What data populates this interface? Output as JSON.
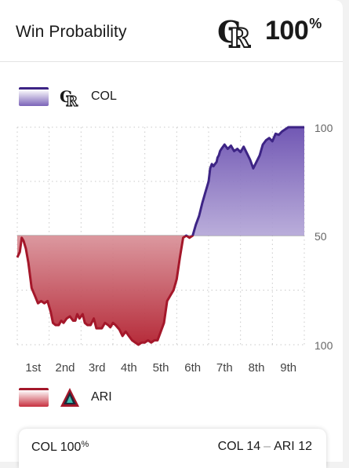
{
  "header": {
    "title": "Win Probability",
    "leader_logo": "col-rockies-logo",
    "percent_value": "100",
    "percent_sign": "%"
  },
  "legend": {
    "top": {
      "label": "COL",
      "logo": "col-rockies-logo",
      "color": "#3d2485"
    },
    "bottom": {
      "label": "ARI",
      "logo": "ari-dbacks-logo",
      "color": "#a4172a"
    }
  },
  "footer": {
    "leader": "COL 100",
    "leader_sign": "%",
    "away_score": "COL 14",
    "separator": "–",
    "home_score": "ARI 12"
  },
  "chart_data": {
    "type": "area",
    "y_axis_labels": [
      "100",
      "50",
      "100"
    ],
    "x_tick_labels": [
      "1st",
      "2nd",
      "3rd",
      "4th",
      "5th",
      "6th",
      "7th",
      "8th",
      "9th"
    ],
    "ylim": [
      -100,
      100
    ],
    "baseline": 50,
    "grid": "dotted vertical per inning, dotted horizontal at 100 and 75 for each team",
    "series": [
      {
        "name": "COL",
        "color": "#3d2485",
        "x": [
          0.0,
          0.08,
          0.14,
          0.2,
          0.27,
          0.35,
          0.45,
          0.55,
          0.65,
          0.75,
          0.85,
          0.95,
          1.05,
          1.12,
          1.2,
          1.3,
          1.38,
          1.45,
          1.55,
          1.65,
          1.75,
          1.82,
          1.88,
          1.95,
          2.05,
          2.12,
          2.2,
          2.3,
          2.4,
          2.48,
          2.55,
          2.65,
          2.75,
          2.85,
          2.92,
          3.0,
          3.08,
          3.2,
          3.3,
          3.4,
          3.5,
          3.6,
          3.7,
          3.8,
          3.9,
          4.0,
          4.1,
          4.2,
          4.3,
          4.4,
          4.5,
          4.6,
          4.7,
          4.8,
          4.9,
          5.0,
          5.1,
          5.2,
          5.3,
          5.4,
          5.5,
          5.6,
          5.7,
          5.8,
          5.9,
          6.0,
          6.05,
          6.1,
          6.15,
          6.2,
          6.25,
          6.28,
          6.32,
          6.36,
          6.4,
          6.5,
          6.6,
          6.7,
          6.8,
          6.9,
          7.0,
          7.1,
          7.2,
          7.3,
          7.4,
          7.5,
          7.6,
          7.7,
          7.8,
          7.9,
          8.0,
          8.1,
          8.2,
          8.3,
          8.4,
          8.5,
          8.6,
          8.7,
          8.8,
          8.9,
          9.0
        ],
        "y": [
          -20,
          -15,
          -2,
          -5,
          -12,
          -25,
          -48,
          -55,
          -62,
          -60,
          -62,
          -60,
          -70,
          -80,
          -82,
          -82,
          -78,
          -80,
          -76,
          -74,
          -78,
          -78,
          -72,
          -76,
          -72,
          -80,
          -82,
          -82,
          -76,
          -85,
          -85,
          -85,
          -80,
          -82,
          -84,
          -80,
          -82,
          -86,
          -92,
          -88,
          -92,
          -96,
          -98,
          -100,
          -98,
          -98,
          -96,
          -98,
          -96,
          -96,
          -88,
          -80,
          -60,
          -55,
          -50,
          -40,
          -20,
          -2,
          0,
          -2,
          0,
          10,
          18,
          30,
          40,
          50,
          62,
          66,
          64,
          66,
          68,
          72,
          74,
          78,
          80,
          84,
          80,
          83,
          78,
          80,
          77,
          82,
          76,
          70,
          62,
          68,
          74,
          84,
          88,
          90,
          87,
          94,
          93,
          96,
          98,
          100,
          100,
          100,
          100,
          100,
          100
        ]
      }
    ]
  }
}
